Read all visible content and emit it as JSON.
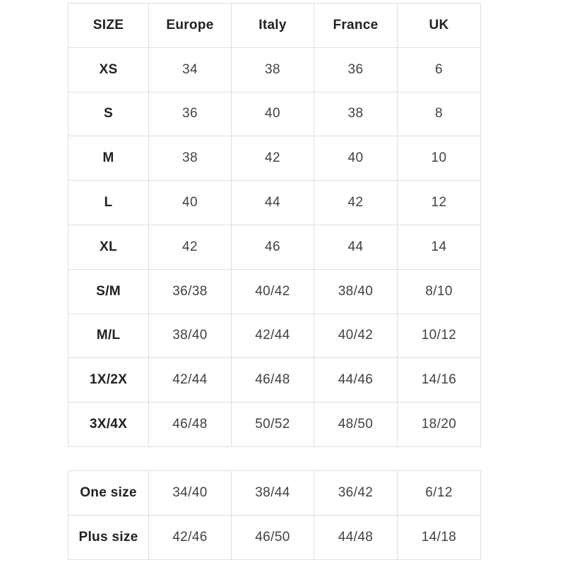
{
  "colors": {
    "background": "#ffffff",
    "border": "#e0e0e0",
    "label_text": "#212121",
    "value_text": "#424242"
  },
  "size_chart": {
    "headers": [
      "SIZE",
      "Europe",
      "Italy",
      "France",
      "UK"
    ],
    "rows": [
      {
        "size": "XS",
        "europe": "34",
        "italy": "38",
        "france": "36",
        "uk": "6"
      },
      {
        "size": "S",
        "europe": "36",
        "italy": "40",
        "france": "38",
        "uk": "8"
      },
      {
        "size": "M",
        "europe": "38",
        "italy": "42",
        "france": "40",
        "uk": "10"
      },
      {
        "size": "L",
        "europe": "40",
        "italy": "44",
        "france": "42",
        "uk": "12"
      },
      {
        "size": "XL",
        "europe": "42",
        "italy": "46",
        "france": "44",
        "uk": "14"
      },
      {
        "size": "S/M",
        "europe": "36/38",
        "italy": "40/42",
        "france": "38/40",
        "uk": "8/10"
      },
      {
        "size": "M/L",
        "europe": "38/40",
        "italy": "42/44",
        "france": "40/42",
        "uk": "10/12"
      },
      {
        "size": "1X/2X",
        "europe": "42/44",
        "italy": "46/48",
        "france": "44/46",
        "uk": "14/16"
      },
      {
        "size": "3X/4X",
        "europe": "46/48",
        "italy": "50/52",
        "france": "48/50",
        "uk": "18/20"
      }
    ]
  },
  "special_sizes": {
    "rows": [
      {
        "size": "One size",
        "europe": "34/40",
        "italy": "38/44",
        "france": "36/42",
        "uk": "6/12"
      },
      {
        "size": "Plus size",
        "europe": "42/46",
        "italy": "46/50",
        "france": "44/48",
        "uk": "14/18"
      }
    ]
  }
}
